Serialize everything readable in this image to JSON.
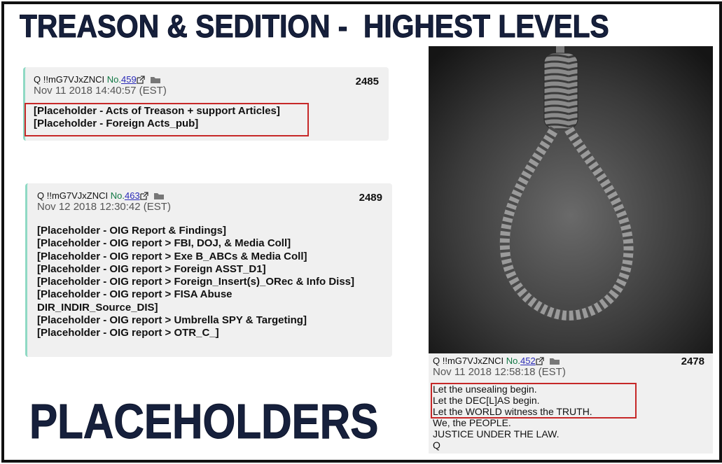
{
  "title": "TREASON & SEDITION -  HIGHEST LEVELS",
  "posts": [
    {
      "author": "Q !!mG7VJxZNCI",
      "no_prefix": "No.",
      "no": "459",
      "date": "Nov 11 2018 14:40:57 (EST)",
      "count": "2485",
      "lines": [
        "[Placeholder - Acts of Treason + support Articles]",
        "[Placeholder - Foreign Acts_pub]"
      ]
    },
    {
      "author": "Q !!mG7VJxZNCI",
      "no_prefix": "No.",
      "no": "463",
      "date": "Nov 12 2018 12:30:42 (EST)",
      "count": "2489",
      "lines": [
        "[Placeholder - OIG Report & Findings]",
        "[Placeholder - OIG report > FBI, DOJ, & Media Coll]",
        "[Placeholder - OIG report > Exe B_ABCs & Media Coll]",
        "[Placeholder - OIG report > Foreign ASST_D1]",
        "[Placeholder - OIG report > Foreign_Insert(s)_ORec & Info Diss]",
        "[Placeholder - OIG report > FISA Abuse DIR_INDIR_Source_DIS]",
        "[Placeholder - OIG report > Umbrella SPY & Targeting]",
        "[Placeholder - OIG report > OTR_C_]"
      ]
    },
    {
      "author": "Q !!mG7VJxZNCI",
      "no_prefix": "No.",
      "no": "452",
      "date": "Nov 11 2018 12:58:18 (EST)",
      "count": "2478",
      "lines": [
        "Let the unsealing begin.",
        "Let the DEC[L]AS begin.",
        "Let the WORLD witness the TRUTH.",
        "We, the PEOPLE.",
        "JUSTICE UNDER THE LAW.",
        "Q"
      ]
    }
  ],
  "footer": "PLACEHOLDERS"
}
